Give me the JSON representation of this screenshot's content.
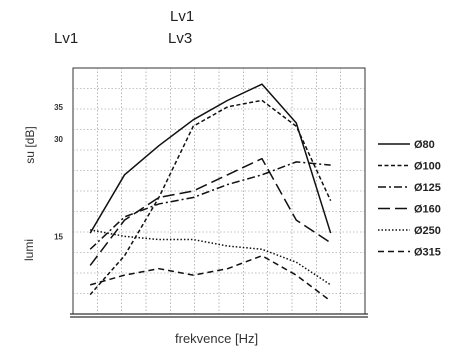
{
  "header": {
    "left_label": "Lv1",
    "center_top_label": "Lv1",
    "center_bottom_label": "Lv3"
  },
  "chart_data": {
    "type": "line",
    "title": "",
    "xlabel": "frekvence [Hz]",
    "ylabel_upper": "su [dB]",
    "ylabel_lower": "lumi",
    "x": [
      1,
      2,
      3,
      4,
      5,
      6,
      7,
      8
    ],
    "xlim": [
      0.5,
      9
    ],
    "ylim": [
      3,
      41
    ],
    "yticks": [
      15,
      30,
      35
    ],
    "grid": true,
    "legend_position": "right",
    "series": [
      {
        "name": "Ø80",
        "dash": "solid",
        "values": [
          15.5,
          24.5,
          29,
          33,
          36,
          38.5,
          32.5,
          15.5
        ]
      },
      {
        "name": "Ø100",
        "dash": "dashed",
        "values": [
          6,
          12,
          21,
          32,
          35,
          36,
          32,
          20.5
        ]
      },
      {
        "name": "Ø125",
        "dash": "dashdot",
        "values": [
          13,
          18,
          20,
          21,
          23,
          24.5,
          26.5,
          26
        ]
      },
      {
        "name": "Ø160",
        "dash": "longdash",
        "values": [
          10.5,
          17.5,
          21,
          22,
          24.5,
          27,
          17.5,
          14
        ]
      },
      {
        "name": "Ø250",
        "dash": "dotted",
        "values": [
          16,
          15,
          14.5,
          14.5,
          13.5,
          13,
          11,
          7.5
        ]
      },
      {
        "name": "Ø315",
        "dash": "medium",
        "values": [
          7.5,
          9,
          10,
          9,
          10,
          12,
          9,
          5
        ]
      }
    ]
  }
}
